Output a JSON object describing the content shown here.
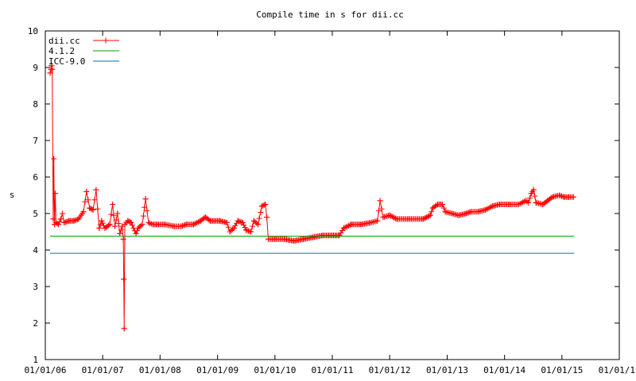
{
  "chart_data": {
    "type": "line",
    "title": "Compile time in s for dii.cc",
    "xlabel": "",
    "ylabel": "s",
    "ylim": [
      1,
      10
    ],
    "xlim": [
      "2006-01-01",
      "2016-01-01"
    ],
    "x_tick_labels": [
      "01/01/06",
      "01/01/07",
      "01/01/08",
      "01/01/09",
      "01/01/10",
      "01/01/11",
      "01/01/12",
      "01/01/13",
      "01/01/14",
      "01/01/15",
      "01/01/1"
    ],
    "y_tick_labels": [
      "1",
      "2",
      "3",
      "4",
      "5",
      "6",
      "7",
      "8",
      "9",
      "10"
    ],
    "grid": false,
    "legend_position": "top-left",
    "series": [
      {
        "name": "dii.cc",
        "color": "#ff0000",
        "marker": "plus",
        "points": [
          [
            "2006-02-01",
            8.85
          ],
          [
            "2006-02-06",
            8.95
          ],
          [
            "2006-02-10",
            9.05
          ],
          [
            "2006-02-14",
            8.95
          ],
          [
            "2006-02-20",
            4.85
          ],
          [
            "2006-02-24",
            6.5
          ],
          [
            "2006-02-28",
            4.7
          ],
          [
            "2006-03-05",
            5.55
          ],
          [
            "2006-03-10",
            4.75
          ],
          [
            "2006-03-25",
            4.7
          ],
          [
            "2006-04-10",
            4.85
          ],
          [
            "2006-04-20",
            5.0
          ],
          [
            "2006-05-01",
            4.75
          ],
          [
            "2006-06-01",
            4.8
          ],
          [
            "2006-07-01",
            4.8
          ],
          [
            "2006-08-01",
            4.85
          ],
          [
            "2006-09-01",
            5.05
          ],
          [
            "2006-09-20",
            5.6
          ],
          [
            "2006-10-10",
            5.15
          ],
          [
            "2006-11-01",
            5.1
          ],
          [
            "2006-11-20",
            5.65
          ],
          [
            "2006-12-10",
            4.6
          ],
          [
            "2006-12-25",
            4.8
          ],
          [
            "2007-01-15",
            4.6
          ],
          [
            "2007-02-15",
            4.7
          ],
          [
            "2007-03-05",
            5.25
          ],
          [
            "2007-03-20",
            4.65
          ],
          [
            "2007-04-05",
            5.0
          ],
          [
            "2007-04-20",
            4.45
          ],
          [
            "2007-05-05",
            4.65
          ],
          [
            "2007-05-12",
            4.3
          ],
          [
            "2007-05-15",
            3.2
          ],
          [
            "2007-05-18",
            1.85
          ],
          [
            "2007-05-22",
            4.7
          ],
          [
            "2007-06-10",
            4.8
          ],
          [
            "2007-07-01",
            4.75
          ],
          [
            "2007-08-01",
            4.45
          ],
          [
            "2007-08-15",
            4.6
          ],
          [
            "2007-09-10",
            4.7
          ],
          [
            "2007-10-01",
            5.4
          ],
          [
            "2007-10-20",
            4.75
          ],
          [
            "2007-11-15",
            4.7
          ],
          [
            "2007-12-15",
            4.7
          ],
          [
            "2008-02-01",
            4.7
          ],
          [
            "2008-04-01",
            4.65
          ],
          [
            "2008-05-15",
            4.65
          ],
          [
            "2008-06-15",
            4.7
          ],
          [
            "2008-08-01",
            4.7
          ],
          [
            "2008-09-15",
            4.8
          ],
          [
            "2008-10-15",
            4.9
          ],
          [
            "2008-11-15",
            4.8
          ],
          [
            "2009-01-15",
            4.8
          ],
          [
            "2009-03-01",
            4.75
          ],
          [
            "2009-03-20",
            4.5
          ],
          [
            "2009-04-15",
            4.6
          ],
          [
            "2009-05-10",
            4.8
          ],
          [
            "2009-06-10",
            4.75
          ],
          [
            "2009-07-01",
            4.55
          ],
          [
            "2009-08-01",
            4.5
          ],
          [
            "2009-08-20",
            4.8
          ],
          [
            "2009-09-15",
            4.7
          ],
          [
            "2009-10-10",
            5.2
          ],
          [
            "2009-11-01",
            5.25
          ],
          [
            "2009-11-10",
            4.9
          ],
          [
            "2009-11-20",
            4.3
          ],
          [
            "2010-01-01",
            4.3
          ],
          [
            "2010-03-01",
            4.3
          ],
          [
            "2010-05-01",
            4.25
          ],
          [
            "2010-07-01",
            4.3
          ],
          [
            "2010-09-01",
            4.35
          ],
          [
            "2010-11-01",
            4.4
          ],
          [
            "2011-01-01",
            4.4
          ],
          [
            "2011-02-15",
            4.4
          ],
          [
            "2011-03-15",
            4.6
          ],
          [
            "2011-05-01",
            4.7
          ],
          [
            "2011-07-01",
            4.7
          ],
          [
            "2011-09-01",
            4.75
          ],
          [
            "2011-10-15",
            4.8
          ],
          [
            "2011-11-01",
            5.35
          ],
          [
            "2011-11-20",
            4.9
          ],
          [
            "2012-01-01",
            4.95
          ],
          [
            "2012-02-15",
            4.85
          ],
          [
            "2012-05-01",
            4.85
          ],
          [
            "2012-08-01",
            4.85
          ],
          [
            "2012-09-15",
            4.95
          ],
          [
            "2012-10-01",
            5.15
          ],
          [
            "2012-11-01",
            5.25
          ],
          [
            "2012-12-01",
            5.25
          ],
          [
            "2012-12-20",
            5.05
          ],
          [
            "2013-02-01",
            5.0
          ],
          [
            "2013-03-15",
            4.95
          ],
          [
            "2013-05-01",
            5.0
          ],
          [
            "2013-06-01",
            5.05
          ],
          [
            "2013-07-15",
            5.05
          ],
          [
            "2013-09-01",
            5.1
          ],
          [
            "2013-10-15",
            5.2
          ],
          [
            "2013-12-01",
            5.25
          ],
          [
            "2014-02-01",
            5.25
          ],
          [
            "2014-04-01",
            5.25
          ],
          [
            "2014-05-15",
            5.35
          ],
          [
            "2014-06-01",
            5.3
          ],
          [
            "2014-06-20",
            5.55
          ],
          [
            "2014-07-05",
            5.65
          ],
          [
            "2014-07-20",
            5.3
          ],
          [
            "2014-09-01",
            5.25
          ],
          [
            "2014-10-01",
            5.35
          ],
          [
            "2014-11-01",
            5.45
          ],
          [
            "2014-12-15",
            5.5
          ],
          [
            "2015-01-15",
            5.45
          ],
          [
            "2015-02-15",
            5.45
          ],
          [
            "2015-03-15",
            5.45
          ]
        ]
      },
      {
        "name": "4.1.2",
        "color": "#00a000",
        "marker": "none",
        "points": [
          [
            "2006-02-01",
            4.38
          ],
          [
            "2015-03-20",
            4.38
          ]
        ]
      },
      {
        "name": "ICC-9.0",
        "color": "#0070c0",
        "marker": "none",
        "points": [
          [
            "2006-02-01",
            3.91
          ],
          [
            "2015-03-20",
            3.91
          ]
        ]
      }
    ]
  }
}
